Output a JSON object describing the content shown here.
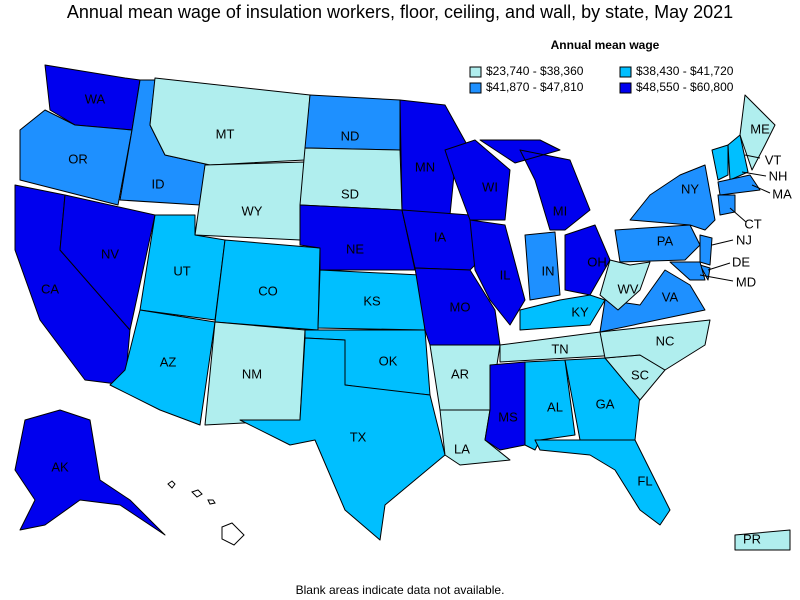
{
  "title": "Annual mean wage of insulation workers, floor, ceiling, and wall, by state, May 2021",
  "legend": {
    "title": "Annual mean wage",
    "items": [
      {
        "label": "$23,740 - $38,360",
        "color": "#b0eeee"
      },
      {
        "label": "$38,430 - $41,720",
        "color": "#00bfff"
      },
      {
        "label": "$41,870 - $47,810",
        "color": "#1e90ff"
      },
      {
        "label": "$48,550 - $60,800",
        "color": "#0000ee"
      }
    ]
  },
  "states": [
    {
      "label": "WA",
      "bin": 3
    },
    {
      "label": "OR",
      "bin": 2
    },
    {
      "label": "CA",
      "bin": 3
    },
    {
      "label": "NV",
      "bin": 3
    },
    {
      "label": "ID",
      "bin": 2
    },
    {
      "label": "MT",
      "bin": 0
    },
    {
      "label": "WY",
      "bin": 0
    },
    {
      "label": "UT",
      "bin": 1
    },
    {
      "label": "CO",
      "bin": 1
    },
    {
      "label": "AZ",
      "bin": 1
    },
    {
      "label": "NM",
      "bin": 0
    },
    {
      "label": "ND",
      "bin": 2
    },
    {
      "label": "SD",
      "bin": 0
    },
    {
      "label": "NE",
      "bin": 3
    },
    {
      "label": "KS",
      "bin": 1
    },
    {
      "label": "OK",
      "bin": 1
    },
    {
      "label": "TX",
      "bin": 1
    },
    {
      "label": "MN",
      "bin": 3
    },
    {
      "label": "IA",
      "bin": 3
    },
    {
      "label": "MO",
      "bin": 3
    },
    {
      "label": "AR",
      "bin": 0
    },
    {
      "label": "LA",
      "bin": 0
    },
    {
      "label": "WI",
      "bin": 3
    },
    {
      "label": "IL",
      "bin": 3
    },
    {
      "label": "MI",
      "bin": 3
    },
    {
      "label": "IN",
      "bin": 2
    },
    {
      "label": "OH",
      "bin": 3
    },
    {
      "label": "KY",
      "bin": 1
    },
    {
      "label": "TN",
      "bin": 0
    },
    {
      "label": "MS",
      "bin": 3
    },
    {
      "label": "AL",
      "bin": 1
    },
    {
      "label": "GA",
      "bin": 1
    },
    {
      "label": "FL",
      "bin": 1
    },
    {
      "label": "SC",
      "bin": 0
    },
    {
      "label": "NC",
      "bin": 0
    },
    {
      "label": "VA",
      "bin": 2
    },
    {
      "label": "WV",
      "bin": 0
    },
    {
      "label": "PA",
      "bin": 2
    },
    {
      "label": "NY",
      "bin": 2
    },
    {
      "label": "NJ",
      "bin": 2
    },
    {
      "label": "DE",
      "bin": 2
    },
    {
      "label": "MD",
      "bin": 2
    },
    {
      "label": "ME",
      "bin": 0
    },
    {
      "label": "VT",
      "bin": 1
    },
    {
      "label": "NH",
      "bin": 1
    },
    {
      "label": "MA",
      "bin": 2
    },
    {
      "label": "CT",
      "bin": 2
    },
    {
      "label": "AK",
      "bin": 3
    },
    {
      "label": "PR",
      "bin": 0
    }
  ],
  "note": "Blank areas indicate data not available."
}
